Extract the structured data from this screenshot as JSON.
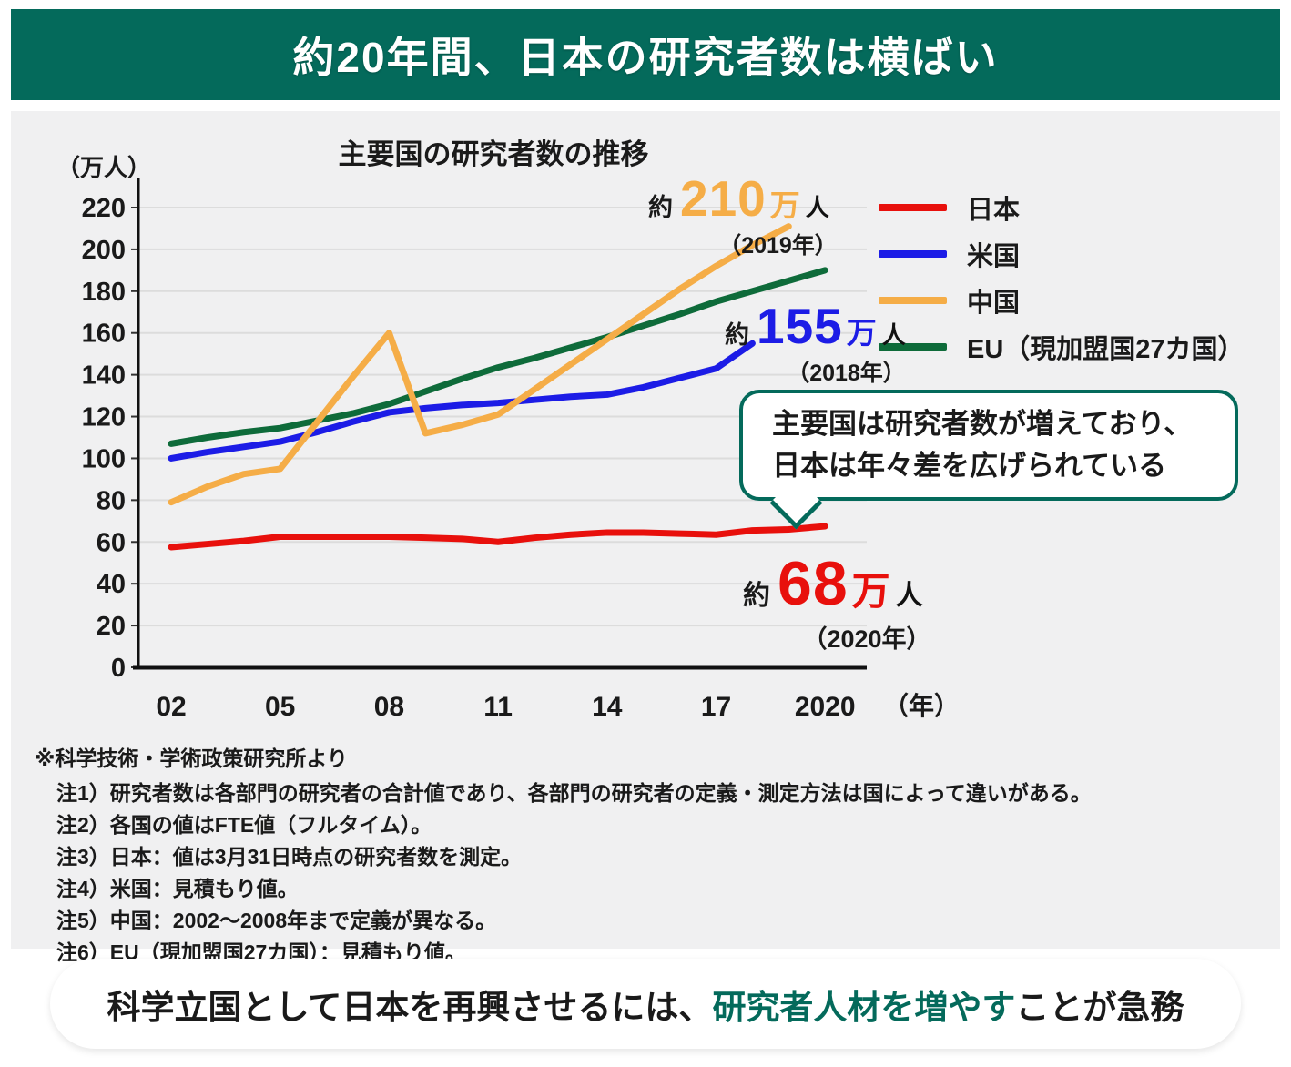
{
  "banner": {
    "title": "約20年間、日本の研究者数は横ばい"
  },
  "colors": {
    "teal": "#046a5b",
    "japan_red": "#e8100c",
    "usa_blue": "#1c1ce6",
    "china_orange": "#f5ad47",
    "eu_green": "#0e6b3a",
    "panel_bg": "#f0f0f1",
    "gridline": "#dcdcdc"
  },
  "chart": {
    "title": "主要国の研究者数の推移",
    "y_unit": "（万人）",
    "x_unit": "（年）",
    "y_ticks": [
      220,
      200,
      180,
      160,
      140,
      120,
      100,
      80,
      60,
      40,
      20,
      0
    ],
    "x_ticks": [
      {
        "label": "02",
        "year": 2002
      },
      {
        "label": "05",
        "year": 2005
      },
      {
        "label": "08",
        "year": 2008
      },
      {
        "label": "11",
        "year": 2011
      },
      {
        "label": "14",
        "year": 2014
      },
      {
        "label": "17",
        "year": 2017
      },
      {
        "label": "2020",
        "year": 2020
      }
    ],
    "legend": [
      {
        "label": "日本",
        "color": "#e8100c"
      },
      {
        "label": "米国",
        "color": "#1c1ce6"
      },
      {
        "label": "中国",
        "color": "#f5ad47"
      },
      {
        "label": "EU（現加盟国27カ国）",
        "color": "#0e6b3a"
      }
    ],
    "annotations": {
      "china": {
        "prefix": "約",
        "value": "210",
        "unit": "万",
        "suffix": "人",
        "year": "（2019年）"
      },
      "usa": {
        "prefix": "約",
        "value": "155",
        "unit": "万",
        "suffix": "人",
        "year": "（2018年）"
      },
      "japan": {
        "prefix": "約",
        "value": "68",
        "unit": "万",
        "suffix": "人",
        "year": "（2020年）"
      }
    },
    "callout": {
      "line1": "主要国は研究者数が増えており、",
      "line2": "日本は年々差を広げられている"
    }
  },
  "chart_data": {
    "type": "line",
    "title": "主要国の研究者数の推移",
    "xlabel": "年",
    "ylabel": "万人",
    "x_range": [
      2002,
      2020
    ],
    "ylim": [
      0,
      230
    ],
    "grid": true,
    "legend_position": "right",
    "series": [
      {
        "name": "日本",
        "color": "#e8100c",
        "end_label": "約68万人（2020年）",
        "points": [
          [
            2002,
            57.5
          ],
          [
            2003,
            59
          ],
          [
            2004,
            60.5
          ],
          [
            2005,
            62.5
          ],
          [
            2006,
            62.5
          ],
          [
            2007,
            62.5
          ],
          [
            2008,
            62.5
          ],
          [
            2009,
            62
          ],
          [
            2010,
            61.5
          ],
          [
            2011,
            60
          ],
          [
            2012,
            62
          ],
          [
            2013,
            63.5
          ],
          [
            2014,
            64.5
          ],
          [
            2015,
            64.5
          ],
          [
            2016,
            64
          ],
          [
            2017,
            63.5
          ],
          [
            2018,
            65.5
          ],
          [
            2019,
            66
          ],
          [
            2020,
            67.5
          ]
        ]
      },
      {
        "name": "米国",
        "color": "#1c1ce6",
        "end_label": "約155万人（2018年）",
        "points": [
          [
            2002,
            100
          ],
          [
            2003,
            103
          ],
          [
            2004,
            105.5
          ],
          [
            2005,
            108
          ],
          [
            2006,
            112.5
          ],
          [
            2007,
            117.5
          ],
          [
            2008,
            122
          ],
          [
            2009,
            124
          ],
          [
            2010,
            125.5
          ],
          [
            2011,
            126.5
          ],
          [
            2012,
            128
          ],
          [
            2013,
            129.5
          ],
          [
            2014,
            130.5
          ],
          [
            2015,
            134
          ],
          [
            2016,
            138.5
          ],
          [
            2017,
            143
          ],
          [
            2018,
            155
          ]
        ]
      },
      {
        "name": "中国",
        "color": "#f5ad47",
        "end_label": "約210万人（2019年）",
        "points": [
          [
            2002,
            79
          ],
          [
            2003,
            86.5
          ],
          [
            2004,
            92.5
          ],
          [
            2005,
            95
          ],
          [
            2006,
            117
          ],
          [
            2007,
            139
          ],
          [
            2008,
            160
          ],
          [
            2009,
            112
          ],
          [
            2010,
            116
          ],
          [
            2011,
            121
          ],
          [
            2012,
            133
          ],
          [
            2013,
            145
          ],
          [
            2014,
            157
          ],
          [
            2015,
            169
          ],
          [
            2016,
            181
          ],
          [
            2017,
            192
          ],
          [
            2018,
            202
          ],
          [
            2019,
            211
          ]
        ]
      },
      {
        "name": "EU（現加盟国27カ国）",
        "color": "#0e6b3a",
        "end_label": "",
        "points": [
          [
            2002,
            107
          ],
          [
            2003,
            110
          ],
          [
            2004,
            112.5
          ],
          [
            2005,
            114.5
          ],
          [
            2006,
            118
          ],
          [
            2007,
            121.5
          ],
          [
            2008,
            126
          ],
          [
            2009,
            132
          ],
          [
            2010,
            138
          ],
          [
            2011,
            143.5
          ],
          [
            2012,
            148
          ],
          [
            2013,
            153
          ],
          [
            2014,
            158
          ],
          [
            2015,
            163.5
          ],
          [
            2016,
            169
          ],
          [
            2017,
            175
          ],
          [
            2018,
            180
          ],
          [
            2019,
            185
          ],
          [
            2020,
            190
          ]
        ]
      }
    ]
  },
  "footnotes": {
    "source": "※科学技術・学術政策研究所より",
    "notes": [
      "注1）研究者数は各部門の研究者の合計値であり、各部門の研究者の定義・測定方法は国によって違いがある。",
      "注2）各国の値はFTE値（フルタイム）。",
      "注3）日本：値は3月31日時点の研究者数を測定。",
      "注4）米国：見積もり値。",
      "注5）中国：2002〜2008年まで定義が異なる。",
      "注6）EU（現加盟国27カ国）：見積もり値。"
    ]
  },
  "conclusion": {
    "pre": "科学立国として日本を再興させるには、",
    "highlight": "研究者人材を増やす",
    "post": "ことが急務"
  }
}
